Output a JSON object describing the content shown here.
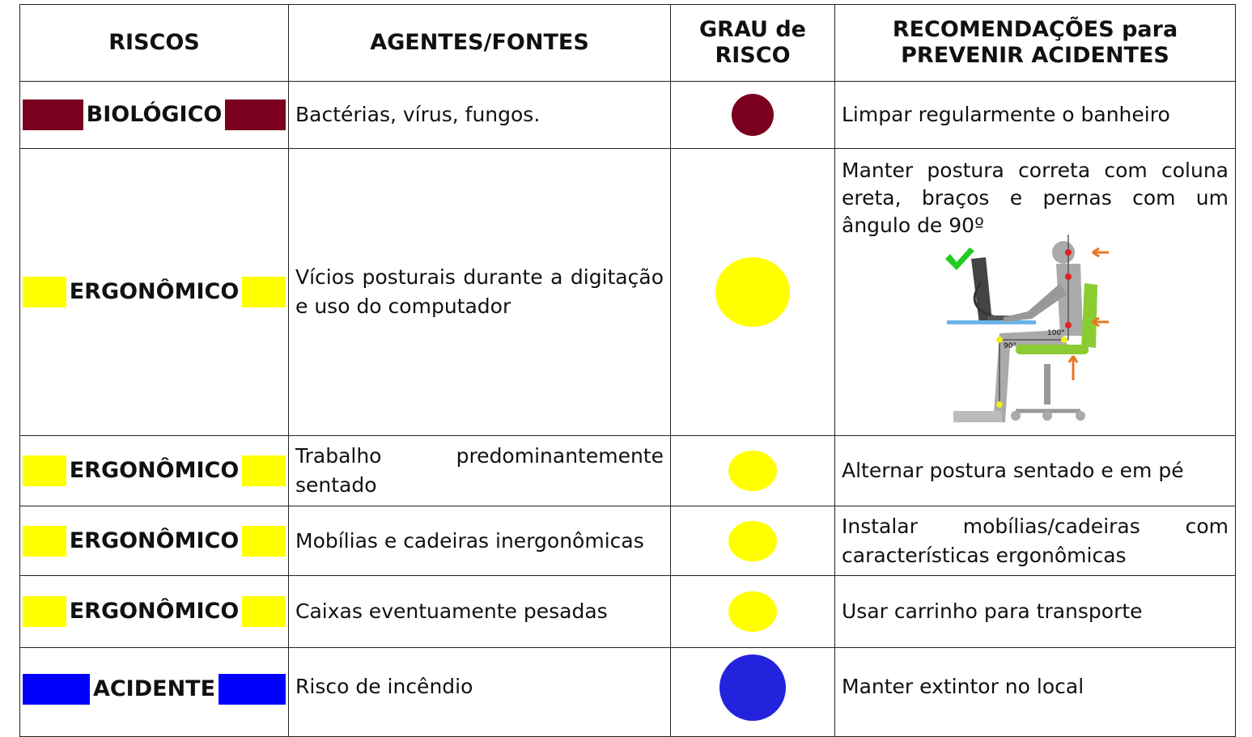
{
  "header": {
    "columns": [
      "RISCOS",
      "AGENTES/FONTES",
      "GRAU de RISCO",
      "RECOMENDAÇÕES para PREVENIR ACIDENTES"
    ]
  },
  "table": {
    "rows": [
      [
        "BIOLÓGICO",
        "Bactérias, vírus, fungos.",
        "Limpar regularmente o banheiro"
      ],
      [
        "ERGONÔMICO",
        "Vícios posturais durante a digitação e uso do computador",
        "Manter postura correta com coluna ereta, braços e pernas com um ângulo de 90º"
      ],
      [
        "ERGONÔMICO",
        "Trabalho predominantemente sentado",
        "Alternar postura sentado e em pé"
      ],
      [
        "ERGONÔMICO",
        "Mobílias e cadeiras inergonômicas",
        "Instalar mobílias/cadeiras com características ergonômicas"
      ],
      [
        "ERGONÔMICO",
        "Caixas eventuamente pesadas",
        "Usar carrinho para transporte"
      ],
      [
        "ACIDENTE",
        "Risco de incêndio",
        "Manter extintor no local"
      ]
    ]
  },
  "illustration": {
    "labels": [
      "100°",
      "90°"
    ]
  }
}
